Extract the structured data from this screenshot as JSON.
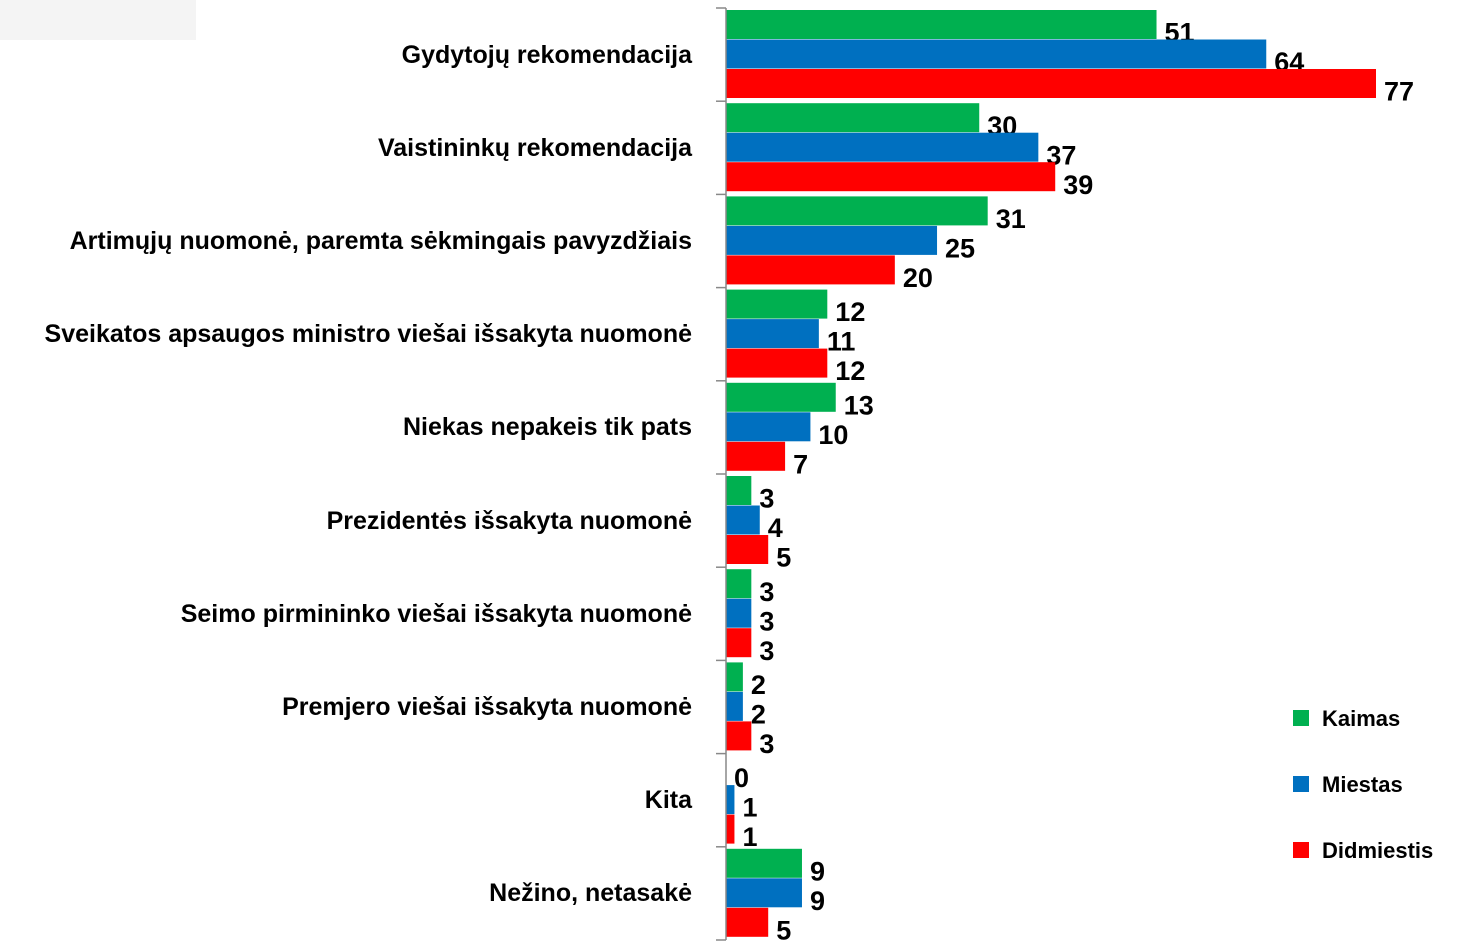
{
  "chart_data": {
    "type": "bar",
    "orientation": "horizontal",
    "categories": [
      "Gydytojų rekomendacija",
      "Vaistininkų rekomendacija",
      "Artimųjų nuomonė, paremta sėkmingais pavyzdžiais",
      "Sveikatos apsaugos ministro viešai išsakyta nuomonė",
      "Niekas nepakeis tik pats",
      "Prezidentės išsakyta nuomonė",
      "Seimo pirmininko viešai išsakyta nuomonė",
      "Premjero viešai išsakyta nuomonė",
      "Kita",
      "Nežino, netasakė"
    ],
    "series": [
      {
        "name": "Kaimas",
        "color": "#00b050",
        "values": [
          51,
          30,
          31,
          12,
          13,
          3,
          3,
          2,
          0,
          9
        ]
      },
      {
        "name": "Miestas",
        "color": "#0070c0",
        "values": [
          64,
          37,
          25,
          11,
          10,
          4,
          3,
          2,
          1,
          9
        ]
      },
      {
        "name": "Didmiestis",
        "color": "#ff0000",
        "values": [
          77,
          39,
          20,
          12,
          7,
          5,
          3,
          3,
          1,
          5
        ]
      }
    ],
    "legend": "right-bottom"
  }
}
